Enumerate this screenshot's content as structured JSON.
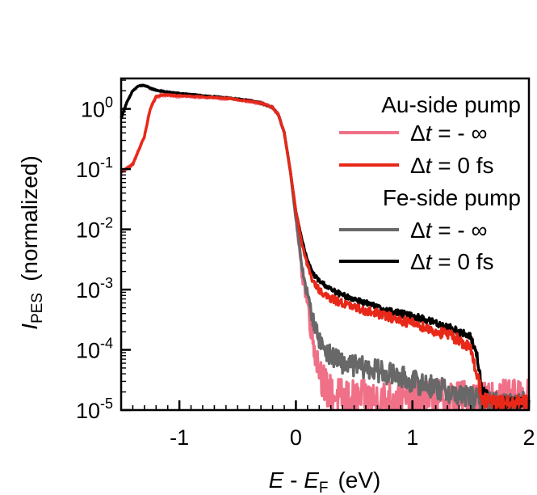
{
  "chart_data": {
    "type": "line",
    "title": "",
    "xlabel": {
      "main": "E",
      "sep": " - ",
      "sub_main": "E",
      "sub": "F",
      "unit": "(eV)"
    },
    "ylabel": {
      "main": "I",
      "sub": "PES",
      "rest": "(normalized)"
    },
    "xlim": [
      -1.5,
      2.0
    ],
    "ylim": [
      1e-05,
      3.2
    ],
    "yscale": "log",
    "xticks": [
      -1,
      0,
      1,
      2
    ],
    "xtick_labels": [
      "-1",
      "0",
      "1",
      "2"
    ],
    "yticks": [
      {
        "base": "10",
        "exp": "0"
      },
      {
        "base": "10",
        "exp": "-1"
      },
      {
        "base": "10",
        "exp": "-2"
      },
      {
        "base": "10",
        "exp": "-3"
      },
      {
        "base": "10",
        "exp": "-4"
      },
      {
        "base": "10",
        "exp": "-5"
      }
    ],
    "legend": {
      "location": "top-right",
      "groups": [
        {
          "title": "Au-side pump",
          "entries": [
            {
              "series": "au_minus_inf",
              "pre": "Δ",
              "var": "t",
              "post": " = - ∞"
            },
            {
              "series": "au_zero",
              "pre": "Δ",
              "var": "t",
              "post": " = 0 fs"
            }
          ]
        },
        {
          "title": "Fe-side pump",
          "entries": [
            {
              "series": "fe_minus_inf",
              "pre": "Δ",
              "var": "t",
              "post": " = - ∞"
            },
            {
              "series": "fe_zero",
              "pre": "Δ",
              "var": "t",
              "post": " = 0 fs"
            }
          ]
        }
      ]
    },
    "series": [
      {
        "id": "au_minus_inf",
        "name": "Au-side pump, Δt = -∞",
        "color": "#f07088",
        "noise_amp": 0.5,
        "x": [
          -1.5,
          -1.4,
          -1.3,
          -1.25,
          -1.2,
          -1.15,
          -1.1,
          -1.0,
          -0.8,
          -0.6,
          -0.4,
          -0.3,
          -0.2,
          -0.15,
          -0.1,
          -0.05,
          0.0,
          0.05,
          0.1,
          0.15,
          0.2,
          0.25,
          0.3,
          0.4,
          0.5,
          0.6,
          0.7,
          0.8,
          0.9,
          1.0,
          1.1,
          1.2,
          1.3,
          1.4,
          1.5,
          1.6,
          1.7,
          1.8,
          1.9,
          2.0
        ],
        "y": [
          0.09,
          0.12,
          0.35,
          1.0,
          1.6,
          1.7,
          1.7,
          1.65,
          1.58,
          1.5,
          1.35,
          1.25,
          1.05,
          0.8,
          0.4,
          0.1,
          0.015,
          0.002,
          0.0006,
          0.00013,
          5e-05,
          2.5e-05,
          1.8e-05,
          1.6e-05,
          1.5e-05,
          1.5e-05,
          1.5e-05,
          1.5e-05,
          1.5e-05,
          1.5e-05,
          1.5e-05,
          1.5e-05,
          1.5e-05,
          1.5e-05,
          1.5e-05,
          1.5e-05,
          1.5e-05,
          1.5e-05,
          1.5e-05,
          1.5e-05
        ]
      },
      {
        "id": "au_zero",
        "name": "Au-side pump, Δt = 0 fs",
        "color": "#e82818",
        "noise_amp": 0.2,
        "x": [
          -1.5,
          -1.4,
          -1.3,
          -1.25,
          -1.2,
          -1.15,
          -1.1,
          -1.0,
          -0.8,
          -0.6,
          -0.4,
          -0.3,
          -0.2,
          -0.15,
          -0.1,
          -0.05,
          0.0,
          0.05,
          0.1,
          0.15,
          0.2,
          0.25,
          0.3,
          0.4,
          0.5,
          0.6,
          0.7,
          0.8,
          0.9,
          1.0,
          1.1,
          1.2,
          1.3,
          1.4,
          1.5,
          1.55,
          1.6,
          1.7,
          1.8,
          1.9,
          2.0
        ],
        "y": [
          0.09,
          0.12,
          0.35,
          1.0,
          1.6,
          1.7,
          1.7,
          1.65,
          1.58,
          1.5,
          1.35,
          1.25,
          1.05,
          0.8,
          0.4,
          0.1,
          0.02,
          0.006,
          0.0025,
          0.0013,
          0.001,
          0.0008,
          0.0007,
          0.0006,
          0.0005,
          0.00045,
          0.0004,
          0.00035,
          0.00031,
          0.00028,
          0.00024,
          0.0002,
          0.00018,
          0.00015,
          0.0001,
          4.5e-05,
          1.5e-05,
          1.3e-05,
          1.3e-05,
          1.3e-05,
          1.3e-05
        ]
      },
      {
        "id": "fe_minus_inf",
        "name": "Fe-side pump, Δt = -∞",
        "color": "#686868",
        "noise_amp": 0.3,
        "x": [
          -1.5,
          -1.45,
          -1.4,
          -1.35,
          -1.3,
          -1.25,
          -1.2,
          -1.1,
          -1.0,
          -0.8,
          -0.6,
          -0.4,
          -0.3,
          -0.2,
          -0.15,
          -0.1,
          -0.05,
          0.0,
          0.05,
          0.1,
          0.15,
          0.2,
          0.25,
          0.3,
          0.4,
          0.5,
          0.6,
          0.7,
          0.8,
          0.9,
          1.0,
          1.1,
          1.2,
          1.3,
          1.4,
          1.5,
          1.6,
          1.7,
          1.8,
          1.9,
          2.0
        ],
        "y": [
          0.7,
          1.3,
          2.0,
          2.4,
          2.45,
          2.2,
          2.05,
          1.9,
          1.8,
          1.65,
          1.52,
          1.38,
          1.25,
          1.05,
          0.8,
          0.4,
          0.1,
          0.015,
          0.0025,
          0.0008,
          0.0003,
          0.00015,
          0.0001,
          8e-05,
          6e-05,
          5.5e-05,
          5e-05,
          4.5e-05,
          4e-05,
          3.5e-05,
          3e-05,
          2.7e-05,
          2.4e-05,
          2e-05,
          1.8e-05,
          1.6e-05,
          1.4e-05,
          1.3e-05,
          1.3e-05,
          1.3e-05,
          1.3e-05
        ]
      },
      {
        "id": "fe_zero",
        "name": "Fe-side pump, Δt = 0 fs",
        "color": "#000000",
        "noise_amp": 0.15,
        "x": [
          -1.5,
          -1.45,
          -1.4,
          -1.35,
          -1.3,
          -1.25,
          -1.2,
          -1.1,
          -1.0,
          -0.8,
          -0.6,
          -0.4,
          -0.3,
          -0.2,
          -0.15,
          -0.1,
          -0.05,
          0.0,
          0.05,
          0.1,
          0.15,
          0.2,
          0.25,
          0.3,
          0.4,
          0.5,
          0.6,
          0.7,
          0.8,
          0.9,
          1.0,
          1.1,
          1.2,
          1.3,
          1.4,
          1.5,
          1.55,
          1.6,
          1.7,
          1.8,
          1.9,
          2.0
        ],
        "y": [
          0.7,
          1.3,
          2.0,
          2.4,
          2.45,
          2.2,
          2.05,
          1.9,
          1.8,
          1.65,
          1.52,
          1.38,
          1.25,
          1.05,
          0.8,
          0.4,
          0.1,
          0.02,
          0.007,
          0.003,
          0.0018,
          0.0014,
          0.0012,
          0.001,
          0.0008,
          0.0007,
          0.0006,
          0.0005,
          0.00045,
          0.0004,
          0.00036,
          0.00032,
          0.00028,
          0.00024,
          0.0002,
          0.00016,
          9e-05,
          2e-05,
          1.3e-05,
          1.3e-05,
          1.3e-05,
          1.3e-05
        ]
      }
    ]
  }
}
